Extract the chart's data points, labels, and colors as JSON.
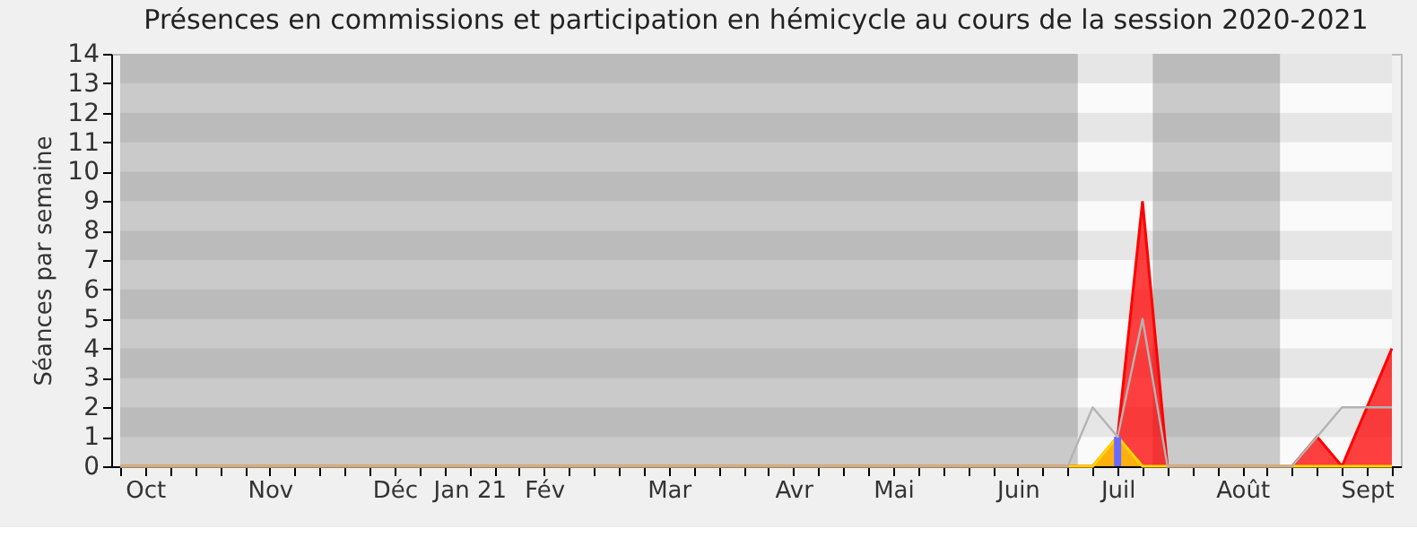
{
  "chart_data": {
    "type": "area",
    "title": "Présences en commissions et participation en hémicycle au cours de la session 2020-2021",
    "ylabel": "Séances par semaine",
    "categories": [
      null,
      "Oct",
      null,
      null,
      null,
      null,
      "Nov",
      null,
      null,
      null,
      null,
      "Déc",
      null,
      null,
      "Jan 21",
      null,
      null,
      "Fév",
      null,
      null,
      null,
      null,
      "Mar",
      null,
      null,
      null,
      null,
      "Avr",
      null,
      null,
      null,
      "Mai",
      null,
      null,
      null,
      null,
      "Juin",
      null,
      null,
      null,
      "Juil",
      null,
      null,
      null,
      null,
      "Août",
      null,
      null,
      null,
      null,
      "Sept",
      null
    ],
    "ylim": [
      0,
      14
    ],
    "yticks": [
      0,
      1,
      2,
      3,
      4,
      5,
      6,
      7,
      8,
      9,
      10,
      11,
      12,
      13,
      14
    ],
    "series": [
      {
        "type": "line",
        "color": "#b4b4b4",
        "values": [
          0,
          0,
          0,
          0,
          0,
          0,
          0,
          0,
          0,
          0,
          0,
          0,
          0,
          0,
          0,
          0,
          0,
          0,
          0,
          0,
          0,
          0,
          0,
          0,
          0,
          0,
          0,
          0,
          0,
          0,
          0,
          0,
          0,
          0,
          0,
          0,
          0,
          0,
          0,
          2,
          1,
          5,
          0,
          0,
          0,
          0,
          0,
          0,
          1,
          2,
          2,
          2
        ]
      },
      {
        "color": "#ff0000",
        "values": [
          0,
          0,
          0,
          0,
          0,
          0,
          0,
          0,
          0,
          0,
          0,
          0,
          0,
          0,
          0,
          0,
          0,
          0,
          0,
          0,
          0,
          0,
          0,
          0,
          0,
          0,
          0,
          0,
          0,
          0,
          0,
          0,
          0,
          0,
          0,
          0,
          0,
          0,
          0,
          0,
          1,
          9,
          0,
          0,
          0,
          0,
          0,
          0,
          1,
          0,
          2,
          4
        ]
      },
      {
        "color": "#ffd700",
        "values": [
          0,
          0,
          0,
          0,
          0,
          0,
          0,
          0,
          0,
          0,
          0,
          0,
          0,
          0,
          0,
          0,
          0,
          0,
          0,
          0,
          0,
          0,
          0,
          0,
          0,
          0,
          0,
          0,
          0,
          0,
          0,
          0,
          0,
          0,
          0,
          0,
          0,
          0,
          0,
          0,
          1,
          0,
          0,
          0,
          0,
          0,
          0,
          0,
          0,
          0,
          0,
          0
        ]
      },
      {
        "type": "bar",
        "color": "#6a6aff",
        "values": [
          null,
          null,
          null,
          null,
          null,
          null,
          null,
          null,
          null,
          null,
          null,
          null,
          null,
          null,
          null,
          null,
          null,
          null,
          null,
          null,
          null,
          null,
          null,
          null,
          null,
          null,
          null,
          null,
          null,
          null,
          null,
          null,
          null,
          null,
          null,
          null,
          null,
          null,
          null,
          null,
          1,
          null,
          null,
          null,
          null,
          null,
          null,
          null,
          null,
          null,
          null,
          null
        ]
      }
    ]
  }
}
